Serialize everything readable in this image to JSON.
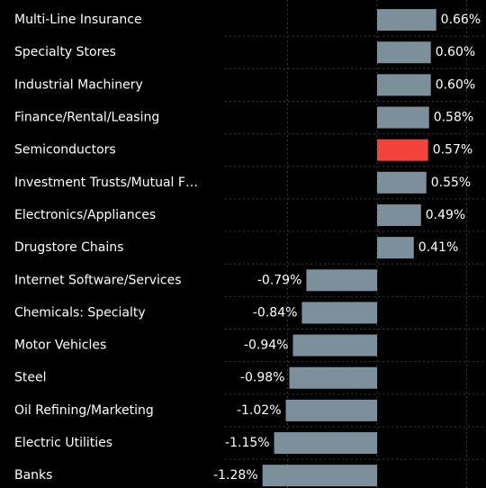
{
  "chart_data": {
    "type": "barh",
    "categories": [
      "Multi-Line Insurance",
      "Specialty Stores",
      "Industrial Machinery",
      "Finance/Rental/Leasing",
      "Semiconductors",
      "Investment Trusts/Mutual F…",
      "Electronics/Appliances",
      "Drugstore Chains",
      "Internet Software/Services",
      "Chemicals: Specialty",
      "Motor Vehicles",
      "Steel",
      "Oil Refining/Marketing",
      "Electric Utilities",
      "Banks"
    ],
    "values": [
      0.66,
      0.6,
      0.6,
      0.58,
      0.57,
      0.55,
      0.49,
      0.41,
      -0.79,
      -0.84,
      -0.94,
      -0.98,
      -1.02,
      -1.15,
      -1.28
    ],
    "value_labels": [
      "0.66%",
      "0.60%",
      "0.60%",
      "0.58%",
      "0.57%",
      "0.55%",
      "0.49%",
      "0.41%",
      "-0.79%",
      "-0.84%",
      "-0.94%",
      "-0.98%",
      "-1.02%",
      "-1.15%",
      "-1.28%"
    ],
    "colors": [
      "#7c909b",
      "#7c909b",
      "#7c909b",
      "#7c909b",
      "#f2433b",
      "#7c909b",
      "#7c909b",
      "#7c909b",
      "#7c909b",
      "#7c909b",
      "#7c909b",
      "#7c909b",
      "#7c909b",
      "#7c909b",
      "#7c909b"
    ],
    "xlim": [
      -2,
      1.2
    ],
    "xticks": [
      -1,
      0,
      1
    ],
    "grid": true
  }
}
